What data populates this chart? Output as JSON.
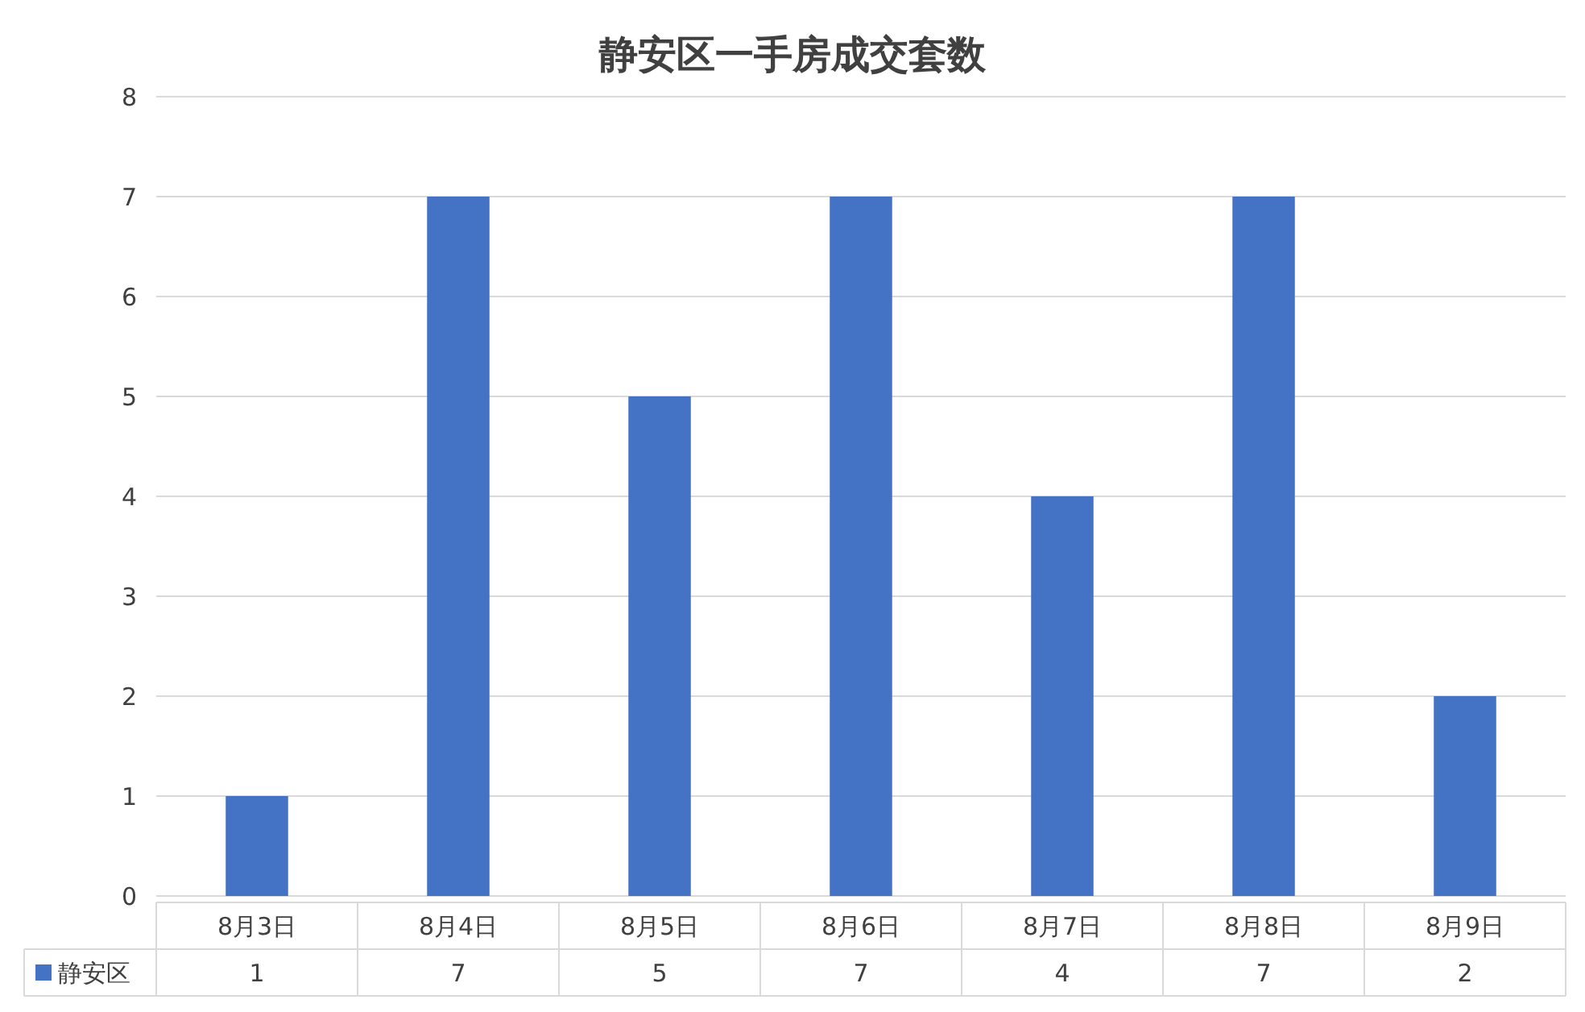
{
  "chart_data": {
    "type": "bar",
    "title": "静安区一手房成交套数",
    "categories": [
      "8月3日",
      "8月4日",
      "8月5日",
      "8月6日",
      "8月7日",
      "8月8日",
      "8月9日"
    ],
    "series": [
      {
        "name": "静安区",
        "color": "#4472c4",
        "values": [
          1,
          7,
          5,
          7,
          4,
          7,
          2
        ]
      }
    ],
    "ylim": [
      0,
      8
    ],
    "yticks": [
      0,
      1,
      2,
      3,
      4,
      5,
      6,
      7,
      8
    ],
    "grid": "y",
    "legend": "bottom",
    "data_labels": true
  }
}
